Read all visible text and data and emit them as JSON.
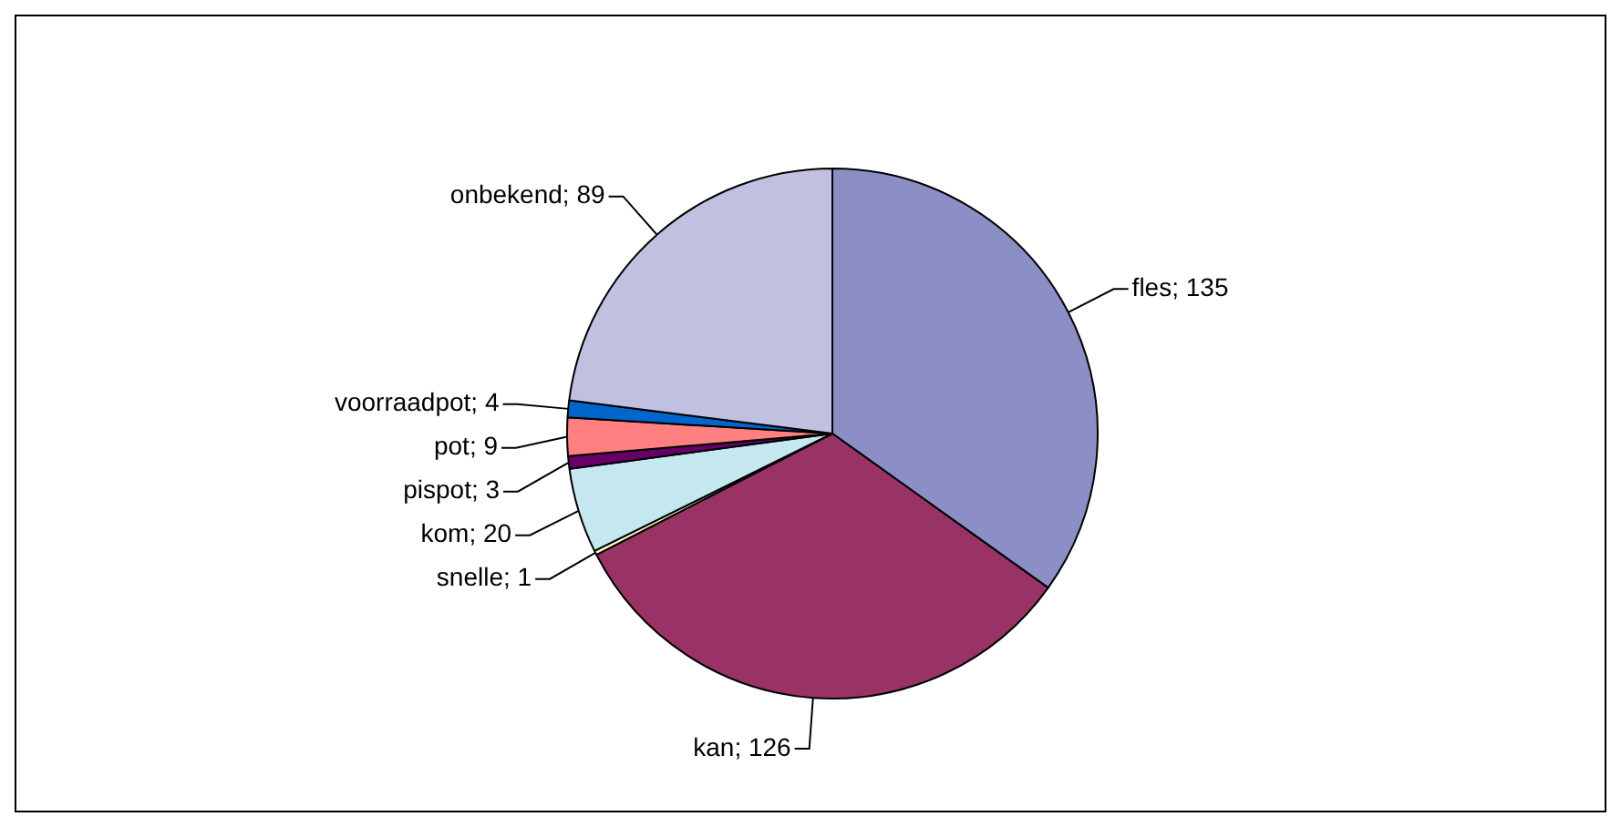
{
  "chart_data": {
    "type": "pie",
    "categories": [
      "fles; 135",
      "kan; 126",
      "snelle; 1",
      "kom; 20",
      "pispot; 3",
      "pot; 9",
      "voorraadpot; 4",
      "onbekend; 89"
    ],
    "values": [
      135,
      126,
      1,
      20,
      3,
      9,
      4,
      89
    ],
    "colors": [
      "#8b8fc6",
      "#993366",
      "#ffffcc",
      "#c5e8f0",
      "#660066",
      "#ff8080",
      "#0066cc",
      "#c0c0e0"
    ],
    "legend": false
  }
}
